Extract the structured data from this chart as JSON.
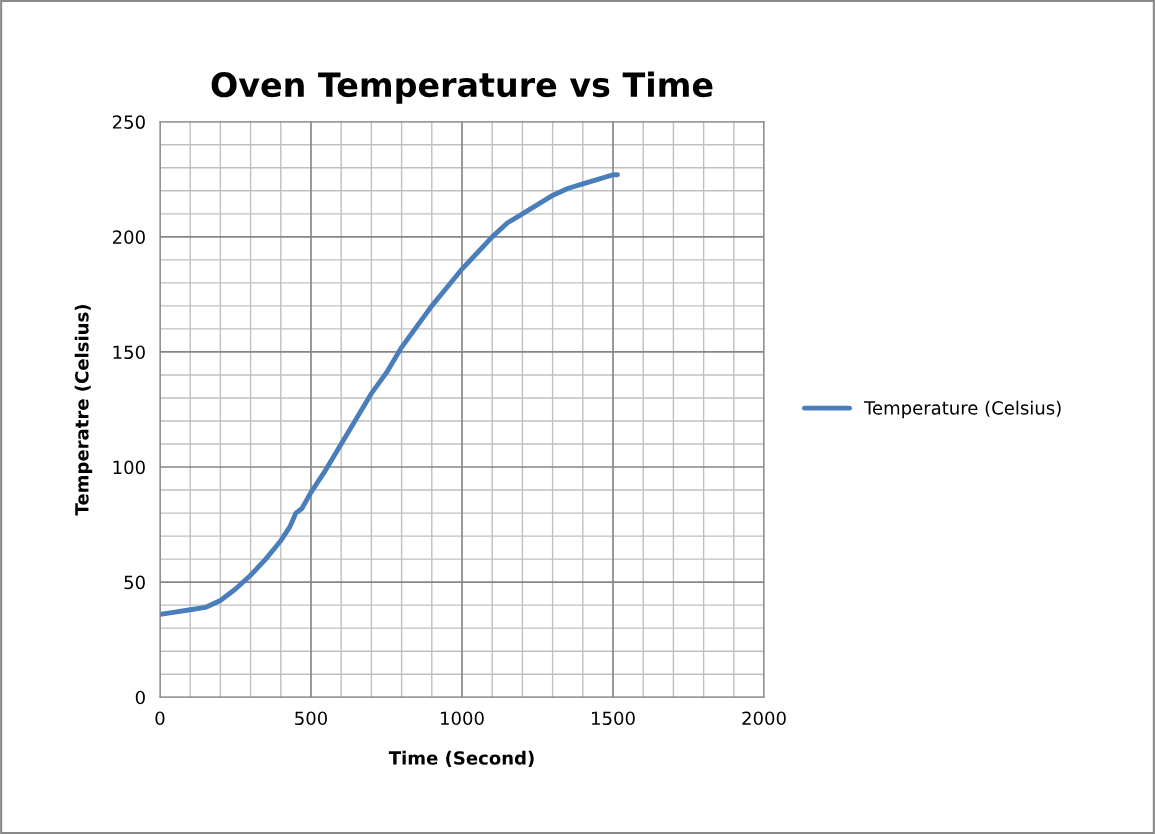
{
  "chart_data": {
    "type": "line",
    "title": "Oven Temperature vs Time",
    "xlabel": "Time (Second)",
    "ylabel": "Temperatre (Celsius)",
    "x": [
      0,
      50,
      100,
      150,
      200,
      250,
      300,
      350,
      400,
      430,
      450,
      470,
      500,
      550,
      600,
      650,
      700,
      750,
      800,
      850,
      900,
      950,
      1000,
      1050,
      1100,
      1150,
      1200,
      1250,
      1300,
      1350,
      1400,
      1450,
      1500,
      1515
    ],
    "series": [
      {
        "name": "Temperature (Celsius)",
        "color": "#4a7ebb",
        "values": [
          36,
          37,
          38,
          39,
          42,
          47,
          53,
          60,
          68,
          74,
          80,
          82,
          89,
          99,
          110,
          121,
          132,
          141,
          152,
          161,
          170,
          178,
          186,
          193,
          200,
          206,
          210,
          214,
          218,
          221,
          223,
          225,
          227,
          227
        ]
      }
    ],
    "xlim": [
      0,
      2000
    ],
    "xticks": [
      0,
      500,
      1000,
      1500,
      2000
    ],
    "ylim": [
      0,
      250
    ],
    "yticks": [
      0,
      50,
      100,
      150,
      200,
      250
    ],
    "grid": true,
    "legend": "right",
    "marker": "none",
    "line_style": "solid"
  }
}
